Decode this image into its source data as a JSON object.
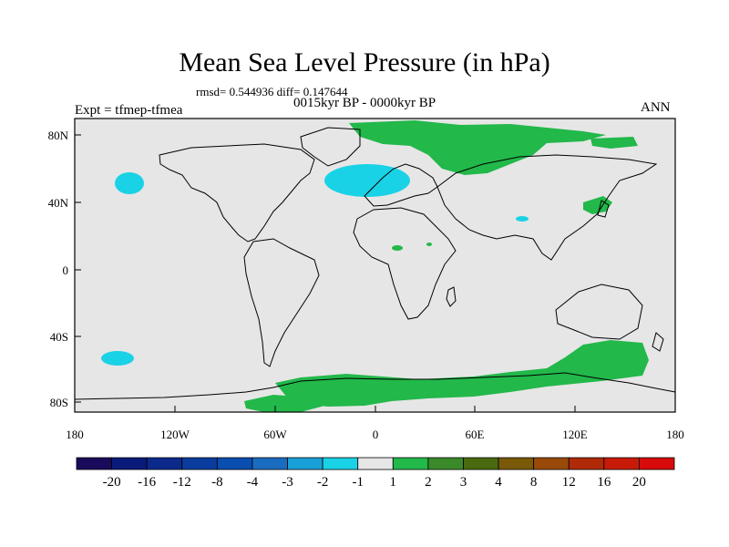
{
  "title": "Mean Sea Level Pressure (in hPa)",
  "stats": "rmsd= 0.544936 diff= 0.147644",
  "period": "0015kyr BP - 0000kyr BP",
  "experiment": "Expt = tfmep-tfmea",
  "season": "ANN",
  "axes": {
    "lon_ticks": [
      "180",
      "120W",
      "60W",
      "0",
      "60E",
      "120E",
      "180"
    ],
    "lat_ticks": [
      "80N",
      "40N",
      "0",
      "40S",
      "80S"
    ]
  },
  "colorbar": {
    "labels": [
      "-20",
      "-16",
      "-12",
      "-8",
      "-4",
      "-3",
      "-2",
      "-1",
      "1",
      "2",
      "3",
      "4",
      "8",
      "12",
      "16",
      "20"
    ],
    "colors": [
      "#1a0a5c",
      "#0a1a7a",
      "#0c2a8c",
      "#0a3c9e",
      "#0a4eb0",
      "#1a6cc0",
      "#1aa0d8",
      "#1ad2e6",
      "#e6e6e6",
      "#22b84a",
      "#3a8a2a",
      "#4a6a10",
      "#7a5a08",
      "#9a4a08",
      "#b02a08",
      "#c81a08",
      "#d80a0a"
    ]
  },
  "colors": {
    "background_field": "#e6e6e6",
    "positive_anomaly": "#22b84a",
    "negative_anomaly": "#1ad2e6"
  }
}
